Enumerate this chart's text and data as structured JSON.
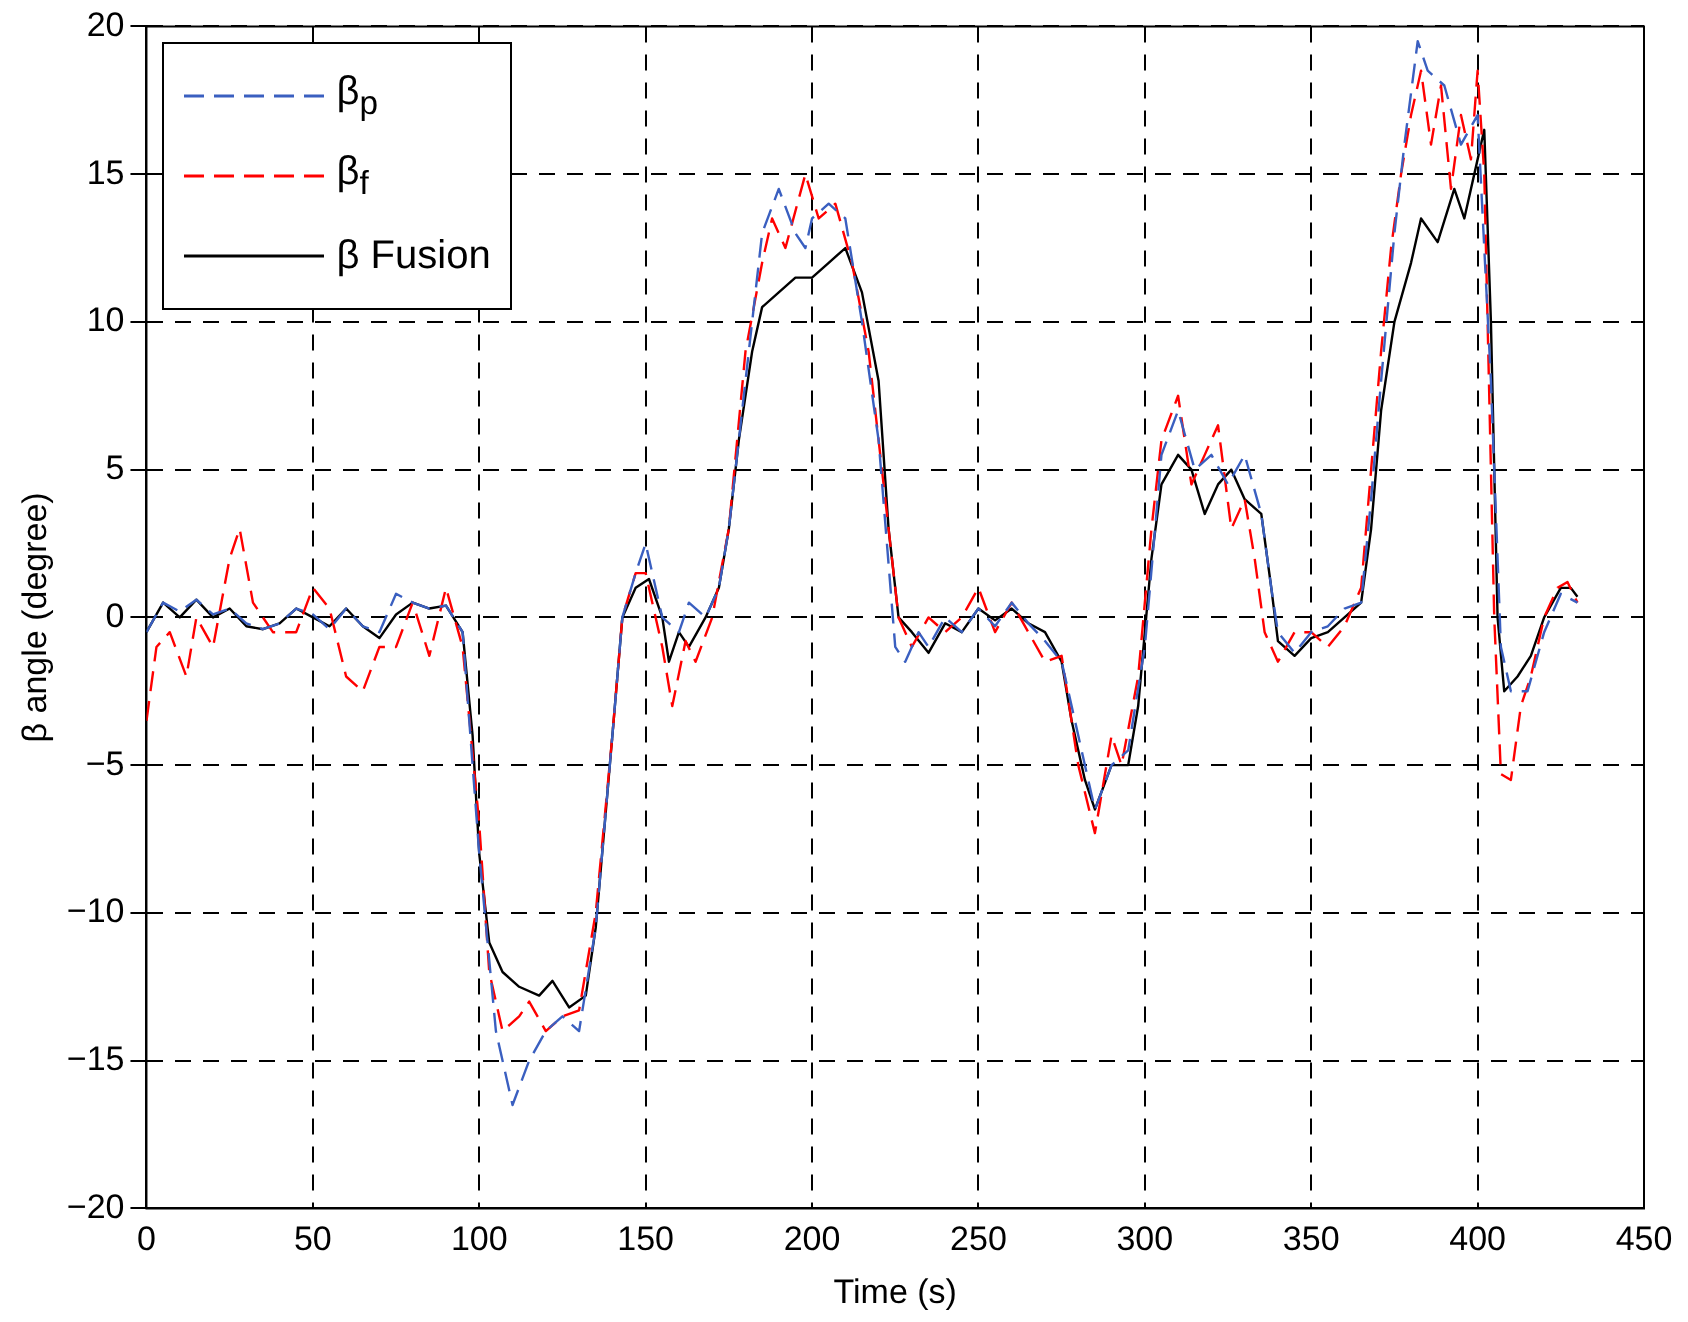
{
  "chart_data": {
    "type": "line",
    "xlabel": "Time (s)",
    "ylabel": "β angle (degree)",
    "xlim": [
      0,
      450
    ],
    "xticks": [
      0,
      50,
      100,
      150,
      200,
      250,
      300,
      350,
      400,
      450
    ],
    "ylim": [
      -20,
      20
    ],
    "yticks": [
      -20,
      -15,
      -10,
      -5,
      0,
      5,
      10,
      15,
      20
    ],
    "grid": true,
    "legend": "top left",
    "marker": "none",
    "series": [
      {
        "name": "β$_{p}$",
        "color": "#3a5fc0",
        "line_style": "dashed",
        "x": [
          0,
          5,
          10,
          15,
          20,
          25,
          30,
          35,
          40,
          45,
          50,
          55,
          60,
          65,
          70,
          75,
          80,
          85,
          90,
          95,
          100,
          105,
          110,
          115,
          120,
          125,
          130,
          135,
          140,
          143,
          147,
          150,
          155,
          160,
          163,
          168,
          172,
          175,
          178,
          182,
          185,
          190,
          195,
          198,
          200,
          205,
          210,
          215,
          220,
          225,
          228,
          232,
          235,
          240,
          245,
          250,
          255,
          260,
          265,
          270,
          275,
          280,
          285,
          290,
          295,
          300,
          305,
          310,
          315,
          320,
          325,
          330,
          335,
          338,
          340,
          345,
          350,
          355,
          360,
          365,
          368,
          371,
          375,
          378,
          382,
          385,
          390,
          395,
          400,
          404,
          407,
          410,
          415,
          420,
          425,
          430
        ],
        "values": [
          -0.5,
          0.5,
          0.2,
          0.6,
          0.1,
          0.3,
          -0.2,
          -0.4,
          -0.2,
          0.3,
          0.1,
          -0.4,
          0.3,
          -0.3,
          -0.5,
          0.8,
          0.5,
          0.3,
          0.4,
          -0.5,
          -8,
          -14,
          -16.5,
          -15,
          -14,
          -13.5,
          -14,
          -10.5,
          -4,
          0,
          1.5,
          2.5,
          0,
          -0.5,
          0.5,
          0,
          1,
          3,
          6,
          10,
          13,
          14.5,
          13,
          12.5,
          13.5,
          14,
          13.5,
          10,
          6,
          -1,
          -1.5,
          -0.5,
          -1,
          0,
          -0.5,
          0.3,
          -0.3,
          0.5,
          -0.2,
          -0.8,
          -1.5,
          -4,
          -6.5,
          -5,
          -4.5,
          -1,
          5.5,
          7,
          5,
          5.5,
          4.5,
          5.5,
          3.5,
          1,
          -0.5,
          -1.2,
          -0.5,
          -0.3,
          0.3,
          0.5,
          4,
          8,
          13,
          16,
          19.5,
          18.5,
          18,
          16,
          17,
          8,
          -1,
          -2.5,
          -2.5,
          -0.5,
          0.8,
          0.5
        ]
      },
      {
        "name": "β$_{f}$",
        "color": "#ff0000",
        "line_style": "dashed",
        "x": [
          0,
          3,
          7,
          12,
          15,
          20,
          25,
          28,
          32,
          38,
          45,
          50,
          55,
          60,
          65,
          70,
          75,
          80,
          85,
          90,
          95,
          100,
          103,
          107,
          112,
          115,
          120,
          125,
          130,
          135,
          140,
          143,
          147,
          150,
          155,
          158,
          162,
          165,
          170,
          175,
          180,
          185,
          188,
          192,
          198,
          202,
          207,
          212,
          217,
          222,
          226,
          230,
          235,
          240,
          245,
          250,
          255,
          260,
          265,
          270,
          275,
          280,
          285,
          290,
          293,
          298,
          302,
          305,
          310,
          314,
          318,
          322,
          326,
          330,
          333,
          336,
          340,
          345,
          350,
          355,
          360,
          365,
          368,
          371,
          374,
          377,
          380,
          383,
          386,
          389,
          392,
          395,
          398,
          400,
          402,
          405,
          407,
          410,
          413,
          416,
          420,
          424,
          427,
          430
        ],
        "values": [
          -3.5,
          -1,
          -0.5,
          -2,
          0,
          -1,
          2,
          3,
          0.5,
          -0.5,
          -0.5,
          1,
          0.3,
          -2,
          -2.5,
          -1,
          -1,
          0.5,
          -1.3,
          1,
          -1,
          -7,
          -12,
          -14,
          -13.5,
          -13,
          -14,
          -13.5,
          -13.3,
          -10,
          -4,
          0,
          1.5,
          1.5,
          -1,
          -3,
          -0.8,
          -1.5,
          0,
          3,
          9,
          12,
          13.5,
          12.5,
          15,
          13.5,
          14,
          12,
          9,
          4,
          0,
          -1,
          0,
          -0.5,
          0,
          1,
          -0.5,
          0.5,
          -0.5,
          -1.5,
          -1.3,
          -5,
          -7.3,
          -4,
          -5,
          -2,
          3,
          6,
          7.5,
          4.5,
          5.5,
          6.5,
          3,
          4,
          2,
          -0.5,
          -1.5,
          -0.5,
          -0.5,
          -1,
          -0.3,
          1,
          5,
          9,
          12.5,
          15,
          17,
          18.5,
          16,
          18,
          14.5,
          17,
          15.5,
          18.5,
          15,
          0,
          -5.3,
          -5.5,
          -3,
          -2,
          0,
          1,
          1.2,
          0.5
        ]
      },
      {
        "name": "β Fusion",
        "color": "#000000",
        "line_style": "solid",
        "x": [
          0,
          5,
          10,
          15,
          20,
          25,
          30,
          35,
          40,
          45,
          50,
          55,
          60,
          65,
          70,
          75,
          80,
          85,
          90,
          95,
          98,
          100,
          103,
          107,
          112,
          118,
          122,
          127,
          132,
          135,
          140,
          143,
          147,
          151,
          155,
          157,
          160,
          163,
          168,
          172,
          175,
          178,
          182,
          185,
          190,
          195,
          200,
          205,
          210,
          215,
          220,
          223,
          226,
          230,
          235,
          240,
          245,
          250,
          255,
          260,
          265,
          270,
          275,
          278,
          282,
          285,
          290,
          295,
          298,
          302,
          305,
          310,
          314,
          318,
          322,
          326,
          330,
          335,
          338,
          340,
          345,
          350,
          355,
          360,
          365,
          368,
          371,
          375,
          380,
          383,
          388,
          393,
          396,
          400,
          402,
          404,
          406,
          408,
          412,
          416,
          420,
          425,
          428,
          430
        ],
        "values": [
          -0.5,
          0.5,
          0,
          0.6,
          0,
          0.3,
          -0.3,
          -0.4,
          -0.2,
          0.3,
          0,
          -0.3,
          0.3,
          -0.3,
          -0.7,
          0.1,
          0.5,
          0.3,
          0.4,
          -0.5,
          -4,
          -8,
          -11,
          -12,
          -12.5,
          -12.8,
          -12.3,
          -13.2,
          -12.8,
          -10.5,
          -4,
          0,
          1,
          1.3,
          0,
          -1.5,
          -0.5,
          -1,
          0,
          1,
          3,
          6,
          9,
          10.5,
          11,
          11.5,
          11.5,
          12,
          12.5,
          11,
          8,
          3,
          0,
          -0.5,
          -1.2,
          -0.2,
          -0.5,
          0.3,
          -0.1,
          0.3,
          -0.2,
          -0.5,
          -1.5,
          -3.5,
          -5.5,
          -6.5,
          -5,
          -5,
          -3,
          2,
          4.5,
          5.5,
          5,
          3.5,
          4.5,
          5,
          4,
          3.5,
          1,
          -0.8,
          -1.3,
          -0.7,
          -0.5,
          0,
          0.5,
          3,
          7,
          10,
          12,
          13.5,
          12.7,
          14.5,
          13.5,
          15.5,
          16.5,
          10,
          0,
          -2.5,
          -2,
          -1.3,
          0,
          1,
          1,
          0.7
        ]
      }
    ]
  }
}
